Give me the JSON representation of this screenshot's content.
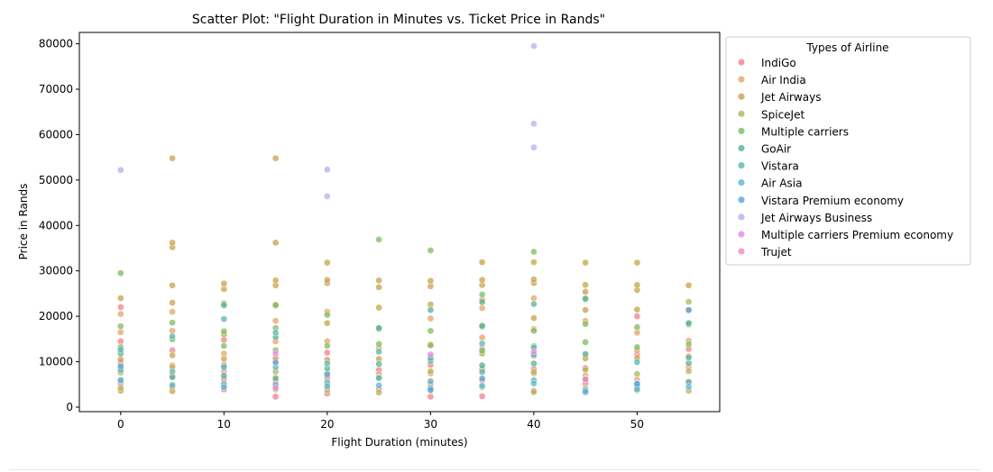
{
  "chart_data": {
    "type": "scatter",
    "title": "Scatter Plot: \"Flight Duration in Minutes vs. Ticket Price in Rands\"",
    "xlabel": "Flight Duration (minutes)",
    "ylabel": "Price in Rands",
    "xlim": [
      -4,
      58
    ],
    "ylim": [
      -1000,
      82500
    ],
    "xticks": [
      0,
      10,
      20,
      30,
      40,
      50
    ],
    "yticks": [
      0,
      10000,
      20000,
      30000,
      40000,
      50000,
      60000,
      70000,
      80000
    ],
    "grid": false,
    "legend": {
      "title": "Types of Airline",
      "placement": "outside-right-top"
    },
    "series": [
      {
        "name": "IndiGo",
        "color": "#f0828a",
        "points": [
          [
            0,
            5200
          ],
          [
            0,
            9800
          ],
          [
            0,
            14500
          ],
          [
            0,
            22000
          ],
          [
            5,
            4300
          ],
          [
            5,
            6800
          ],
          [
            5,
            12500
          ],
          [
            10,
            3900
          ],
          [
            10,
            6200
          ],
          [
            10,
            14800
          ],
          [
            15,
            2300
          ],
          [
            15,
            5400
          ],
          [
            15,
            10200
          ],
          [
            20,
            3000
          ],
          [
            20,
            6400
          ],
          [
            20,
            12000
          ],
          [
            25,
            4000
          ],
          [
            25,
            8200
          ],
          [
            30,
            2300
          ],
          [
            30,
            5100
          ],
          [
            30,
            9300
          ],
          [
            35,
            2400
          ],
          [
            35,
            5900
          ],
          [
            35,
            12800
          ],
          [
            40,
            3600
          ],
          [
            40,
            8400
          ],
          [
            45,
            5200
          ],
          [
            45,
            8600
          ],
          [
            50,
            4300
          ],
          [
            50,
            11600
          ],
          [
            50,
            20000
          ],
          [
            55,
            5600
          ],
          [
            55,
            12800
          ]
        ]
      },
      {
        "name": "Air India",
        "color": "#e8a26a",
        "points": [
          [
            0,
            8700
          ],
          [
            0,
            16500
          ],
          [
            0,
            20500
          ],
          [
            5,
            9200
          ],
          [
            5,
            16800
          ],
          [
            5,
            21000
          ],
          [
            10,
            7800
          ],
          [
            10,
            11800
          ],
          [
            15,
            6000
          ],
          [
            15,
            14500
          ],
          [
            15,
            19000
          ],
          [
            20,
            4800
          ],
          [
            20,
            14500
          ],
          [
            20,
            21000
          ],
          [
            25,
            7200
          ],
          [
            25,
            13000
          ],
          [
            30,
            7400
          ],
          [
            30,
            13800
          ],
          [
            30,
            19500
          ],
          [
            35,
            8200
          ],
          [
            35,
            15300
          ],
          [
            35,
            21800
          ],
          [
            40,
            7400
          ],
          [
            40,
            17200
          ],
          [
            40,
            24000
          ],
          [
            45,
            6900
          ],
          [
            45,
            11500
          ],
          [
            45,
            19000
          ],
          [
            50,
            6000
          ],
          [
            50,
            12500
          ],
          [
            50,
            16400
          ],
          [
            55,
            8800
          ],
          [
            55,
            14600
          ]
        ]
      },
      {
        "name": "Jet Airways",
        "color": "#c9a14a",
        "points": [
          [
            0,
            3600
          ],
          [
            0,
            10500
          ],
          [
            0,
            24000
          ],
          [
            5,
            3500
          ],
          [
            5,
            11400
          ],
          [
            5,
            23000
          ],
          [
            5,
            26800
          ],
          [
            5,
            35200
          ],
          [
            5,
            36200
          ],
          [
            5,
            54800
          ],
          [
            10,
            10600
          ],
          [
            10,
            16000
          ],
          [
            10,
            26000
          ],
          [
            10,
            27200
          ],
          [
            15,
            10800
          ],
          [
            15,
            22300
          ],
          [
            15,
            26800
          ],
          [
            15,
            27900
          ],
          [
            15,
            36200
          ],
          [
            15,
            54800
          ],
          [
            20,
            10400
          ],
          [
            20,
            18500
          ],
          [
            20,
            27300
          ],
          [
            20,
            28000
          ],
          [
            20,
            31800
          ],
          [
            25,
            10600
          ],
          [
            25,
            21900
          ],
          [
            25,
            26400
          ],
          [
            25,
            27900
          ],
          [
            30,
            11100
          ],
          [
            30,
            22600
          ],
          [
            30,
            26600
          ],
          [
            30,
            27800
          ],
          [
            35,
            11800
          ],
          [
            35,
            23600
          ],
          [
            35,
            26900
          ],
          [
            35,
            28000
          ],
          [
            35,
            31900
          ],
          [
            40,
            11300
          ],
          [
            40,
            19600
          ],
          [
            40,
            27300
          ],
          [
            40,
            28100
          ],
          [
            40,
            31900
          ],
          [
            45,
            10700
          ],
          [
            45,
            21400
          ],
          [
            45,
            25400
          ],
          [
            45,
            26900
          ],
          [
            45,
            31800
          ],
          [
            50,
            10800
          ],
          [
            50,
            21500
          ],
          [
            50,
            25800
          ],
          [
            50,
            26900
          ],
          [
            50,
            31800
          ],
          [
            55,
            11200
          ],
          [
            55,
            21300
          ],
          [
            55,
            26800
          ]
        ]
      },
      {
        "name": "SpiceJet",
        "color": "#b4b45e",
        "points": [
          [
            0,
            4200
          ],
          [
            0,
            7600
          ],
          [
            5,
            4500
          ],
          [
            5,
            8800
          ],
          [
            10,
            4600
          ],
          [
            10,
            9300
          ],
          [
            15,
            3900
          ],
          [
            15,
            7800
          ],
          [
            20,
            3800
          ],
          [
            20,
            7400
          ],
          [
            25,
            3200
          ],
          [
            25,
            6500
          ],
          [
            30,
            3600
          ],
          [
            30,
            7900
          ],
          [
            35,
            4400
          ],
          [
            35,
            8500
          ],
          [
            40,
            3300
          ],
          [
            40,
            7700
          ],
          [
            45,
            4100
          ],
          [
            45,
            8200
          ],
          [
            50,
            3700
          ],
          [
            50,
            7300
          ],
          [
            55,
            3600
          ],
          [
            55,
            7900
          ],
          [
            55,
            23200
          ]
        ]
      },
      {
        "name": "Multiple carriers",
        "color": "#7cbc5e",
        "points": [
          [
            0,
            13200
          ],
          [
            0,
            17800
          ],
          [
            0,
            29500
          ],
          [
            5,
            14900
          ],
          [
            5,
            18600
          ],
          [
            10,
            13500
          ],
          [
            10,
            16700
          ],
          [
            10,
            22800
          ],
          [
            15,
            12500
          ],
          [
            15,
            17400
          ],
          [
            15,
            22500
          ],
          [
            20,
            13500
          ],
          [
            20,
            20300
          ],
          [
            25,
            13900
          ],
          [
            25,
            17200
          ],
          [
            25,
            36900
          ],
          [
            30,
            13600
          ],
          [
            30,
            16800
          ],
          [
            30,
            34500
          ],
          [
            35,
            12400
          ],
          [
            35,
            17700
          ],
          [
            35,
            24800
          ],
          [
            40,
            13400
          ],
          [
            40,
            16800
          ],
          [
            40,
            34200
          ],
          [
            45,
            14300
          ],
          [
            45,
            18300
          ],
          [
            45,
            23700
          ],
          [
            50,
            13200
          ],
          [
            50,
            17600
          ],
          [
            55,
            13800
          ],
          [
            55,
            18200
          ]
        ]
      },
      {
        "name": "GoAir",
        "color": "#58b38f",
        "points": [
          [
            0,
            6000
          ],
          [
            0,
            11800
          ],
          [
            5,
            6600
          ],
          [
            10,
            6900
          ],
          [
            10,
            22400
          ],
          [
            15,
            6400
          ],
          [
            15,
            15400
          ],
          [
            20,
            8500
          ],
          [
            25,
            9500
          ],
          [
            25,
            17400
          ],
          [
            30,
            10200
          ],
          [
            30,
            21400
          ],
          [
            35,
            9200
          ],
          [
            35,
            17900
          ],
          [
            35,
            23100
          ],
          [
            40,
            9600
          ],
          [
            40,
            22700
          ],
          [
            45,
            23900
          ],
          [
            50,
            5200
          ],
          [
            55,
            9700
          ],
          [
            55,
            18500
          ]
        ]
      },
      {
        "name": "Vistara",
        "color": "#5bb5b0",
        "points": [
          [
            0,
            8200
          ],
          [
            0,
            12600
          ],
          [
            5,
            7800
          ],
          [
            5,
            15600
          ],
          [
            10,
            5100
          ],
          [
            10,
            19400
          ],
          [
            15,
            8800
          ],
          [
            15,
            16400
          ],
          [
            20,
            5400
          ],
          [
            20,
            9600
          ],
          [
            25,
            6400
          ],
          [
            25,
            12200
          ],
          [
            30,
            5700
          ],
          [
            30,
            10800
          ],
          [
            35,
            7700
          ],
          [
            35,
            14000
          ],
          [
            40,
            5900
          ],
          [
            40,
            13100
          ],
          [
            45,
            6200
          ],
          [
            45,
            11700
          ],
          [
            50,
            4600
          ],
          [
            50,
            9900
          ],
          [
            55,
            5500
          ],
          [
            55,
            10900
          ]
        ]
      },
      {
        "name": "Air Asia",
        "color": "#5bb7d2",
        "points": [
          [
            0,
            5900
          ],
          [
            5,
            4900
          ],
          [
            10,
            4400
          ],
          [
            15,
            4900
          ],
          [
            20,
            4600
          ],
          [
            25,
            4800
          ],
          [
            30,
            4200
          ],
          [
            35,
            4700
          ],
          [
            40,
            5200
          ],
          [
            45,
            3700
          ],
          [
            50,
            3900
          ],
          [
            55,
            4500
          ]
        ]
      },
      {
        "name": "Vistara Premium economy",
        "color": "#5aa3de",
        "points": [
          [
            0,
            9000
          ],
          [
            10,
            8800
          ],
          [
            15,
            9800
          ],
          [
            20,
            7200
          ],
          [
            30,
            3800
          ],
          [
            35,
            6300
          ],
          [
            40,
            11600
          ],
          [
            45,
            3300
          ],
          [
            50,
            5100
          ],
          [
            55,
            21400
          ]
        ]
      },
      {
        "name": "Jet Airways Business",
        "color": "#b7aef2",
        "points": [
          [
            0,
            52200
          ],
          [
            20,
            52300
          ],
          [
            20,
            46400
          ],
          [
            40,
            79500
          ],
          [
            40,
            62400
          ],
          [
            40,
            57200
          ]
        ]
      },
      {
        "name": "Multiple carriers Premium economy",
        "color": "#e58ae8",
        "points": [
          [
            15,
            11800
          ],
          [
            30,
            11600
          ],
          [
            40,
            12200
          ]
        ]
      },
      {
        "name": "Trujet",
        "color": "#ef8ac4",
        "points": [
          [
            15,
            4200
          ],
          [
            45,
            6100
          ]
        ]
      }
    ]
  }
}
